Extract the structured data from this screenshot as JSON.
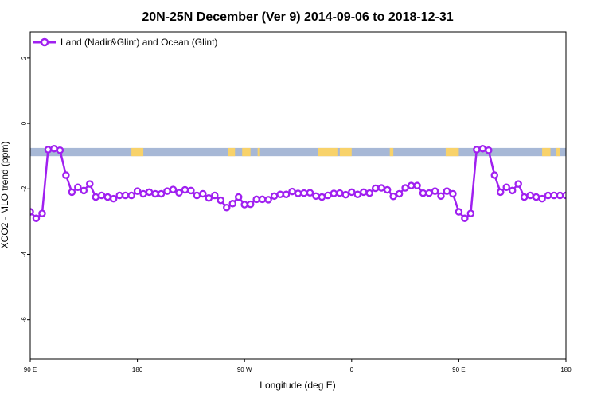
{
  "chart_data": {
    "type": "line",
    "title": "20N-25N December (Ver 9)   2014-09-06 to 2018-12-31",
    "xlabel": "Longitude (deg E)",
    "ylabel": "XCO2 - MLO trend (ppm)",
    "xlim": [
      90,
      540
    ],
    "ylim": [
      -7.2,
      2.8
    ],
    "x_ticks": [
      {
        "value": 90,
        "label": "90 E"
      },
      {
        "value": 180,
        "label": "180"
      },
      {
        "value": 270,
        "label": "90 W"
      },
      {
        "value": 360,
        "label": "0"
      },
      {
        "value": 450,
        "label": "90 E"
      },
      {
        "value": 540,
        "label": "180"
      }
    ],
    "y_ticks": [
      {
        "value": 2,
        "label": "2"
      },
      {
        "value": 0,
        "label": "0"
      },
      {
        "value": -2,
        "label": "-2"
      },
      {
        "value": -4,
        "label": "-4"
      },
      {
        "value": -6,
        "label": "-6"
      }
    ],
    "legend": {
      "position": "top-left"
    },
    "background_band": {
      "y_range": [
        -1.0,
        -0.75
      ],
      "ocean_color": "#a7b8d6",
      "land_color": "#f8d26a",
      "land_spans_lon": [
        [
          175,
          185
        ],
        [
          256,
          262
        ],
        [
          268,
          275
        ],
        [
          281,
          283
        ],
        [
          332,
          348
        ],
        [
          350,
          360
        ],
        [
          392,
          395
        ],
        [
          439,
          450
        ],
        [
          520,
          527
        ],
        [
          532,
          535
        ]
      ]
    },
    "series": [
      {
        "name": "Land (Nadir&Glint) and Ocean (Glint)",
        "color": "#a020f0",
        "x": [
          90,
          95,
          100,
          105,
          110,
          115,
          120,
          125,
          130,
          135,
          140,
          145,
          150,
          155,
          160,
          165,
          170,
          175,
          180,
          185,
          190,
          195,
          200,
          205,
          210,
          215,
          220,
          225,
          230,
          235,
          240,
          245,
          250,
          255,
          260,
          265,
          270,
          275,
          280,
          285,
          290,
          295,
          300,
          305,
          310,
          315,
          320,
          325,
          330,
          335,
          340,
          345,
          350,
          355,
          360,
          365,
          370,
          375,
          380,
          385,
          390,
          395,
          400,
          405,
          410,
          415,
          420,
          425,
          430,
          435,
          440,
          445,
          450,
          455,
          460,
          465,
          470,
          475,
          480,
          485,
          490,
          495,
          500,
          505,
          510,
          515,
          520,
          525,
          530,
          535,
          540
        ],
        "values": [
          -2.7,
          -2.9,
          -2.75,
          -0.8,
          -0.77,
          -0.82,
          -1.58,
          -2.1,
          -1.95,
          -2.05,
          -1.85,
          -2.25,
          -2.2,
          -2.25,
          -2.3,
          -2.2,
          -2.2,
          -2.2,
          -2.07,
          -2.15,
          -2.1,
          -2.15,
          -2.15,
          -2.07,
          -2.02,
          -2.12,
          -2.03,
          -2.05,
          -2.2,
          -2.15,
          -2.28,
          -2.2,
          -2.35,
          -2.57,
          -2.45,
          -2.25,
          -2.48,
          -2.47,
          -2.32,
          -2.32,
          -2.33,
          -2.22,
          -2.17,
          -2.17,
          -2.08,
          -2.14,
          -2.13,
          -2.12,
          -2.22,
          -2.25,
          -2.2,
          -2.14,
          -2.13,
          -2.18,
          -2.1,
          -2.17,
          -2.1,
          -2.13,
          -1.98,
          -1.97,
          -2.03,
          -2.23,
          -2.15,
          -1.97,
          -1.9,
          -1.9,
          -2.13,
          -2.13,
          -2.07,
          -2.22,
          -2.07,
          -2.15,
          -2.7,
          -2.9,
          -2.75,
          -0.8,
          -0.77,
          -0.82,
          -1.58,
          -2.1,
          -1.95,
          -2.05,
          -1.85,
          -2.25,
          -2.2,
          -2.25,
          -2.3,
          -2.2,
          -2.2,
          -2.2,
          -2.2
        ]
      }
    ]
  }
}
